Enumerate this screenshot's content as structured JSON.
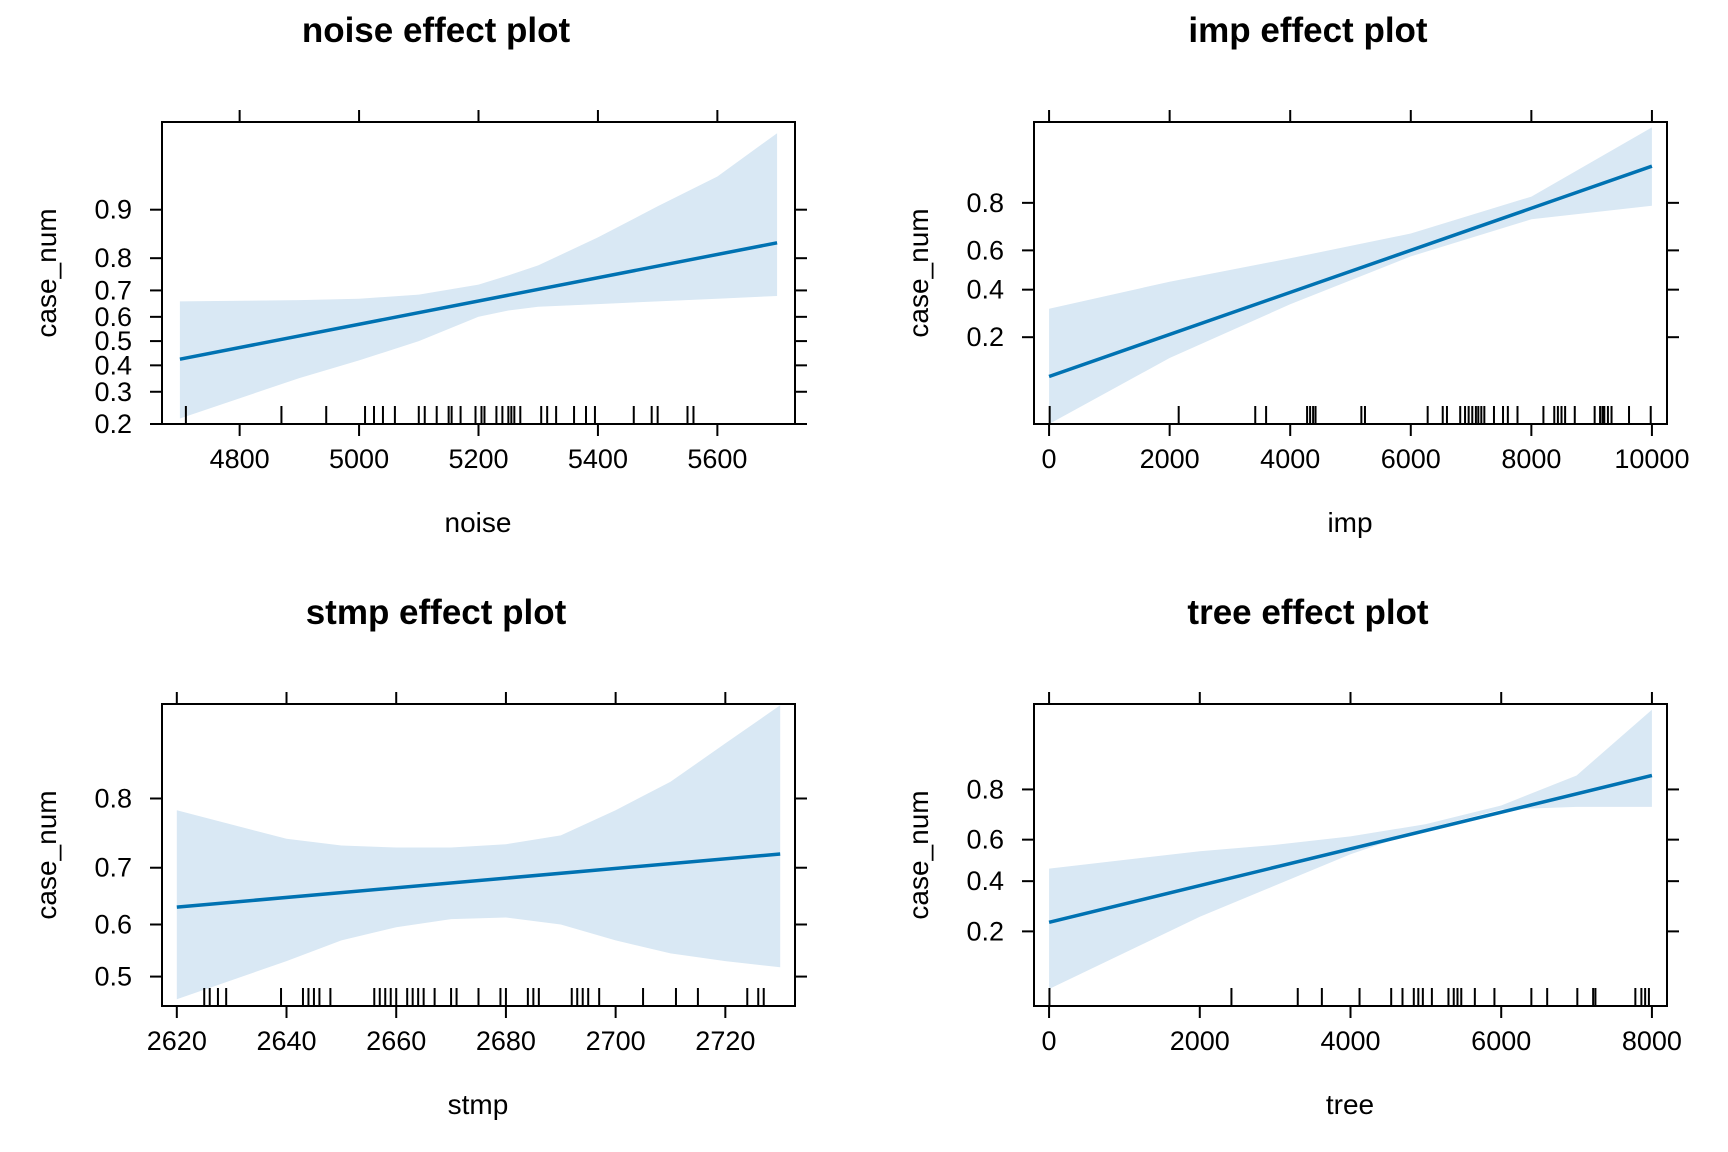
{
  "colors": {
    "line": "#0072B2",
    "band": "#D9E8F4"
  },
  "chart_data": [
    {
      "type": "line",
      "title": "noise effect plot",
      "xlabel": "noise",
      "ylabel": "case_num",
      "yscale": "logit",
      "xlim": [
        4670,
        5730
      ],
      "ylim": [
        0.2,
        0.975
      ],
      "x_ticks": [
        4800,
        5000,
        5200,
        5400,
        5600
      ],
      "y_ticks": [
        0.2,
        0.3,
        0.4,
        0.5,
        0.6,
        0.7,
        0.8,
        0.9
      ],
      "series": [
        {
          "x": [
            4700,
            5700
          ],
          "y": [
            0.425,
            0.838
          ]
        }
      ],
      "ci_band": {
        "x": [
          4700,
          4900,
          5000,
          5100,
          5200,
          5250,
          5300,
          5400,
          5500,
          5600,
          5700
        ],
        "lower": [
          0.215,
          0.35,
          0.42,
          0.5,
          0.6,
          0.625,
          0.64,
          0.65,
          0.66,
          0.67,
          0.68
        ],
        "upper": [
          0.66,
          0.665,
          0.67,
          0.685,
          0.72,
          0.75,
          0.78,
          0.85,
          0.905,
          0.94,
          0.97
        ]
      },
      "rug": [
        4710,
        4870,
        4945,
        5010,
        5025,
        5040,
        5060,
        5100,
        5110,
        5130,
        5150,
        5155,
        5170,
        5195,
        5205,
        5210,
        5230,
        5240,
        5250,
        5255,
        5260,
        5270,
        5305,
        5315,
        5330,
        5360,
        5380,
        5395,
        5460,
        5490,
        5500,
        5550,
        5560
      ]
    },
    {
      "type": "line",
      "title": "imp effect plot",
      "xlabel": "imp",
      "ylabel": "case_num",
      "yscale": "logit",
      "xlim": [
        -250,
        10250
      ],
      "ylim": [
        0.04,
        0.955
      ],
      "x_ticks": [
        0,
        2000,
        4000,
        6000,
        8000,
        10000
      ],
      "y_ticks": [
        0.2,
        0.4,
        0.6,
        0.8
      ],
      "series": [
        {
          "x": [
            0,
            10000
          ],
          "y": [
            0.1,
            0.895
          ]
        }
      ],
      "ci_band": {
        "x": [
          0,
          2000,
          4000,
          6000,
          8000,
          10000
        ],
        "lower": [
          0.04,
          0.14,
          0.33,
          0.57,
          0.74,
          0.79
        ],
        "upper": [
          0.31,
          0.44,
          0.56,
          0.68,
          0.82,
          0.95
        ]
      },
      "rug": [
        10,
        2150,
        3420,
        3600,
        4280,
        4330,
        4380,
        4420,
        5180,
        5240,
        6280,
        6530,
        6600,
        6820,
        6900,
        6960,
        7020,
        7080,
        7120,
        7170,
        7220,
        7380,
        7530,
        7610,
        7770,
        8200,
        8380,
        8440,
        8500,
        8560,
        8720,
        9050,
        9140,
        9180,
        9210,
        9270,
        9330,
        9620,
        9980
      ]
    },
    {
      "type": "line",
      "title": "stmp effect plot",
      "xlabel": "stmp",
      "ylabel": "case_num",
      "yscale": "logit",
      "xlim": [
        2617.3,
        2732.7
      ],
      "ylim": [
        0.443,
        0.893
      ],
      "x_ticks": [
        2620,
        2640,
        2660,
        2680,
        2700,
        2720
      ],
      "y_ticks": [
        0.5,
        0.6,
        0.7,
        0.8
      ],
      "series": [
        {
          "x": [
            2620,
            2730
          ],
          "y": [
            0.632,
            0.722
          ]
        }
      ],
      "ci_band": {
        "x": [
          2620,
          2640,
          2650,
          2660,
          2670,
          2680,
          2690,
          2700,
          2710,
          2720,
          2730
        ],
        "lower": [
          0.456,
          0.53,
          0.57,
          0.595,
          0.61,
          0.613,
          0.6,
          0.57,
          0.545,
          0.53,
          0.518
        ],
        "upper": [
          0.785,
          0.745,
          0.735,
          0.732,
          0.732,
          0.737,
          0.75,
          0.785,
          0.82,
          0.86,
          0.892
        ]
      },
      "rug": [
        2625,
        2626,
        2627.5,
        2629,
        2639,
        2643,
        2644,
        2645,
        2646,
        2648,
        2656,
        2657,
        2658,
        2659,
        2660,
        2662,
        2663,
        2664,
        2665,
        2667,
        2670,
        2671,
        2675,
        2679,
        2680,
        2684,
        2685,
        2686,
        2692,
        2693,
        2694,
        2695,
        2697,
        2705,
        2711,
        2715,
        2724,
        2726,
        2727
      ]
    },
    {
      "type": "line",
      "title": "tree effect plot",
      "xlabel": "tree",
      "ylabel": "case_num",
      "yscale": "logit",
      "xlim": [
        -200,
        8200
      ],
      "ylim": [
        0.055,
        0.955
      ],
      "x_ticks": [
        0,
        2000,
        4000,
        6000,
        8000
      ],
      "y_ticks": [
        0.2,
        0.4,
        0.6,
        0.8
      ],
      "series": [
        {
          "x": [
            0,
            8000
          ],
          "y": [
            0.23,
            0.84
          ]
        }
      ],
      "ci_band": {
        "x": [
          0,
          2000,
          3000,
          4000,
          5000,
          6000,
          7000,
          8000
        ],
        "lower": [
          0.075,
          0.25,
          0.38,
          0.53,
          0.65,
          0.73,
          0.74,
          0.74
        ],
        "upper": [
          0.46,
          0.545,
          0.575,
          0.615,
          0.67,
          0.745,
          0.84,
          0.95
        ]
      },
      "rug": [
        5,
        2420,
        3300,
        3620,
        4120,
        4540,
        4690,
        4840,
        4900,
        4960,
        5080,
        5300,
        5370,
        5420,
        5470,
        5650,
        5910,
        6400,
        6610,
        7010,
        7220,
        7250,
        7780,
        7860,
        7910,
        7960
      ]
    }
  ]
}
